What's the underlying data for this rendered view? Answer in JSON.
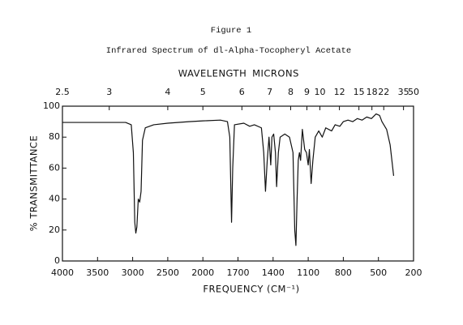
{
  "chart_data": {
    "type": "line",
    "title": "Figure 1",
    "subtitle": "Infrared Spectrum of dl-Alpha-Tocopheryl Acetate",
    "x2_label_left": "WAVELENGTH",
    "x2_label_right": "MICRONS",
    "x_label": "FREQUENCY (CM⁻¹)",
    "y_label": "% TRANSMITTANCE",
    "xscale": "tick-interpolated",
    "xticks": [
      4000,
      3500,
      3000,
      2500,
      2000,
      1700,
      1400,
      1100,
      800,
      500,
      200
    ],
    "x2ticks": [
      2.5,
      3,
      4,
      5,
      6,
      7,
      8,
      9,
      10,
      12,
      15,
      18,
      22,
      35,
      50
    ],
    "ylim": [
      0,
      100
    ],
    "yticks": [
      0,
      20,
      40,
      60,
      80,
      100
    ],
    "color": "#111111",
    "x": [
      4000,
      3500,
      3100,
      3020,
      2990,
      2970,
      2955,
      2940,
      2920,
      2900,
      2880,
      2860,
      2820,
      2700,
      2500,
      2200,
      2000,
      1850,
      1790,
      1770,
      1755,
      1745,
      1730,
      1650,
      1600,
      1560,
      1500,
      1480,
      1465,
      1450,
      1435,
      1420,
      1410,
      1395,
      1380,
      1370,
      1355,
      1340,
      1300,
      1260,
      1230,
      1215,
      1205,
      1195,
      1185,
      1175,
      1165,
      1150,
      1130,
      1115,
      1100,
      1090,
      1075,
      1060,
      1040,
      1010,
      980,
      950,
      900,
      870,
      830,
      800,
      760,
      720,
      680,
      640,
      600,
      560,
      520,
      490,
      470,
      430,
      400,
      370
    ],
    "values": [
      89.5,
      89.5,
      89.5,
      88,
      70,
      25,
      18,
      22,
      40,
      38,
      45,
      78,
      86,
      88,
      89,
      90,
      90.5,
      91,
      90,
      80,
      25,
      60,
      88,
      89,
      87,
      88,
      86,
      70,
      45,
      65,
      80,
      62,
      80,
      82,
      70,
      48,
      70,
      80,
      82,
      80,
      70,
      20,
      10,
      40,
      65,
      70,
      65,
      85,
      72,
      70,
      62,
      72,
      50,
      65,
      80,
      84,
      80,
      86,
      84,
      88,
      87,
      90,
      91,
      90,
      92,
      91,
      93,
      92,
      95,
      94,
      90,
      85,
      75,
      55
    ]
  }
}
